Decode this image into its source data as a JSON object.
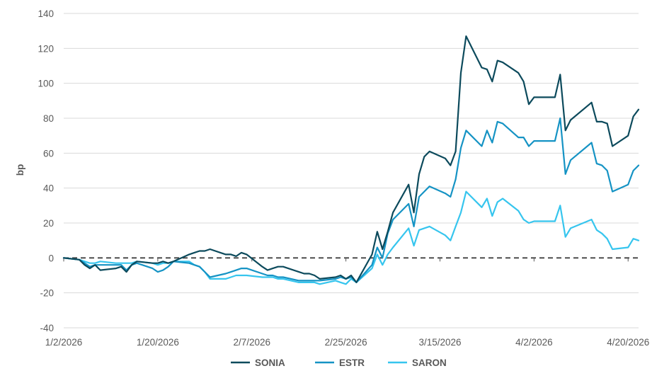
{
  "chart_data": {
    "type": "line",
    "title": "",
    "xlabel": "",
    "ylabel": "bp",
    "ylim": [
      -40,
      140
    ],
    "yticks": [
      -40,
      -20,
      0,
      20,
      40,
      60,
      80,
      100,
      120,
      140
    ],
    "xlim": [
      "2026-01-02",
      "2026-04-22"
    ],
    "xticks": [
      {
        "date": "2026-01-02",
        "label": "1/2/2026"
      },
      {
        "date": "2026-01-20",
        "label": "1/20/2026"
      },
      {
        "date": "2026-02-07",
        "label": "2/7/2026"
      },
      {
        "date": "2026-02-25",
        "label": "2/25/2026"
      },
      {
        "date": "2026-03-15",
        "label": "3/15/2026"
      },
      {
        "date": "2026-04-02",
        "label": "4/2/2026"
      },
      {
        "date": "2026-04-20",
        "label": "4/20/2026"
      }
    ],
    "zero_line": {
      "y": 0,
      "style": "dashed",
      "color": "#404040"
    },
    "grid": {
      "horizontal": true,
      "vertical": false,
      "color": "#d9d9d9"
    },
    "legend": {
      "position": "bottom"
    },
    "series": [
      {
        "name": "SONIA",
        "color": "#0c4a5c",
        "points": [
          [
            "2026-01-02",
            0
          ],
          [
            "2026-01-05",
            -1
          ],
          [
            "2026-01-06",
            -4
          ],
          [
            "2026-01-07",
            -6
          ],
          [
            "2026-01-08",
            -4
          ],
          [
            "2026-01-09",
            -7
          ],
          [
            "2026-01-12",
            -6
          ],
          [
            "2026-01-13",
            -5
          ],
          [
            "2026-01-14",
            -8
          ],
          [
            "2026-01-15",
            -4
          ],
          [
            "2026-01-16",
            -2
          ],
          [
            "2026-01-19",
            -3
          ],
          [
            "2026-01-20",
            -3
          ],
          [
            "2026-01-21",
            -2
          ],
          [
            "2026-01-22",
            -3
          ],
          [
            "2026-01-23",
            -2
          ],
          [
            "2026-01-26",
            2
          ],
          [
            "2026-01-27",
            3
          ],
          [
            "2026-01-28",
            4
          ],
          [
            "2026-01-29",
            4
          ],
          [
            "2026-01-30",
            5
          ],
          [
            "2026-02-02",
            2
          ],
          [
            "2026-02-03",
            2
          ],
          [
            "2026-02-04",
            1
          ],
          [
            "2026-02-05",
            3
          ],
          [
            "2026-02-06",
            2
          ],
          [
            "2026-02-09",
            -5
          ],
          [
            "2026-02-10",
            -7
          ],
          [
            "2026-02-11",
            -6
          ],
          [
            "2026-02-12",
            -5
          ],
          [
            "2026-02-13",
            -5
          ],
          [
            "2026-02-16",
            -8
          ],
          [
            "2026-02-17",
            -9
          ],
          [
            "2026-02-18",
            -9
          ],
          [
            "2026-02-19",
            -10
          ],
          [
            "2026-02-20",
            -12
          ],
          [
            "2026-02-23",
            -11
          ],
          [
            "2026-02-24",
            -10
          ],
          [
            "2026-02-25",
            -12
          ],
          [
            "2026-02-26",
            -10
          ],
          [
            "2026-02-27",
            -14
          ],
          [
            "2026-03-02",
            2
          ],
          [
            "2026-03-03",
            15
          ],
          [
            "2026-03-04",
            5
          ],
          [
            "2026-03-05",
            15
          ],
          [
            "2026-03-06",
            26
          ],
          [
            "2026-03-09",
            42
          ],
          [
            "2026-03-10",
            26
          ],
          [
            "2026-03-11",
            48
          ],
          [
            "2026-03-12",
            58
          ],
          [
            "2026-03-13",
            61
          ],
          [
            "2026-03-16",
            57
          ],
          [
            "2026-03-17",
            53
          ],
          [
            "2026-03-18",
            61
          ],
          [
            "2026-03-19",
            106
          ],
          [
            "2026-03-20",
            127
          ],
          [
            "2026-03-23",
            109
          ],
          [
            "2026-03-24",
            108
          ],
          [
            "2026-03-25",
            101
          ],
          [
            "2026-03-26",
            113
          ],
          [
            "2026-03-27",
            112
          ],
          [
            "2026-03-30",
            106
          ],
          [
            "2026-03-31",
            101
          ],
          [
            "2026-04-01",
            88
          ],
          [
            "2026-04-02",
            92
          ],
          [
            "2026-04-03",
            92
          ],
          [
            "2026-04-06",
            92
          ],
          [
            "2026-04-07",
            105
          ],
          [
            "2026-04-08",
            73
          ],
          [
            "2026-04-09",
            79
          ],
          [
            "2026-04-13",
            89
          ],
          [
            "2026-04-14",
            78
          ],
          [
            "2026-04-15",
            78
          ],
          [
            "2026-04-16",
            77
          ],
          [
            "2026-04-17",
            64
          ],
          [
            "2026-04-20",
            70
          ],
          [
            "2026-04-21",
            81
          ],
          [
            "2026-04-22",
            85
          ]
        ]
      },
      {
        "name": "ESTR",
        "color": "#1593c4",
        "points": [
          [
            "2026-01-02",
            0
          ],
          [
            "2026-01-05",
            -1
          ],
          [
            "2026-01-06",
            -3
          ],
          [
            "2026-01-07",
            -5
          ],
          [
            "2026-01-08",
            -4
          ],
          [
            "2026-01-09",
            -4
          ],
          [
            "2026-01-12",
            -4
          ],
          [
            "2026-01-13",
            -4
          ],
          [
            "2026-01-14",
            -7
          ],
          [
            "2026-01-15",
            -4
          ],
          [
            "2026-01-16",
            -3
          ],
          [
            "2026-01-19",
            -6
          ],
          [
            "2026-01-20",
            -8
          ],
          [
            "2026-01-21",
            -7
          ],
          [
            "2026-01-22",
            -5
          ],
          [
            "2026-01-23",
            -2
          ],
          [
            "2026-01-26",
            -3
          ],
          [
            "2026-01-27",
            -4
          ],
          [
            "2026-01-28",
            -5
          ],
          [
            "2026-01-29",
            -8
          ],
          [
            "2026-01-30",
            -11
          ],
          [
            "2026-02-02",
            -9
          ],
          [
            "2026-02-03",
            -8
          ],
          [
            "2026-02-04",
            -7
          ],
          [
            "2026-02-05",
            -6
          ],
          [
            "2026-02-06",
            -6
          ],
          [
            "2026-02-09",
            -9
          ],
          [
            "2026-02-10",
            -10
          ],
          [
            "2026-02-11",
            -10
          ],
          [
            "2026-02-12",
            -11
          ],
          [
            "2026-02-13",
            -11
          ],
          [
            "2026-02-16",
            -13
          ],
          [
            "2026-02-17",
            -13
          ],
          [
            "2026-02-18",
            -13
          ],
          [
            "2026-02-19",
            -13
          ],
          [
            "2026-02-20",
            -13
          ],
          [
            "2026-02-23",
            -12
          ],
          [
            "2026-02-24",
            -11
          ],
          [
            "2026-02-25",
            -12
          ],
          [
            "2026-02-26",
            -11
          ],
          [
            "2026-02-27",
            -14
          ],
          [
            "2026-03-02",
            -4
          ],
          [
            "2026-03-03",
            6
          ],
          [
            "2026-03-04",
            0
          ],
          [
            "2026-03-05",
            14
          ],
          [
            "2026-03-06",
            22
          ],
          [
            "2026-03-09",
            31
          ],
          [
            "2026-03-10",
            18
          ],
          [
            "2026-03-11",
            35
          ],
          [
            "2026-03-12",
            38
          ],
          [
            "2026-03-13",
            41
          ],
          [
            "2026-03-16",
            37
          ],
          [
            "2026-03-17",
            35
          ],
          [
            "2026-03-18",
            45
          ],
          [
            "2026-03-19",
            63
          ],
          [
            "2026-03-20",
            73
          ],
          [
            "2026-03-23",
            64
          ],
          [
            "2026-03-24",
            73
          ],
          [
            "2026-03-25",
            66
          ],
          [
            "2026-03-26",
            78
          ],
          [
            "2026-03-27",
            77
          ],
          [
            "2026-03-30",
            69
          ],
          [
            "2026-03-31",
            69
          ],
          [
            "2026-04-01",
            64
          ],
          [
            "2026-04-02",
            67
          ],
          [
            "2026-04-03",
            67
          ],
          [
            "2026-04-06",
            67
          ],
          [
            "2026-04-07",
            80
          ],
          [
            "2026-04-08",
            48
          ],
          [
            "2026-04-09",
            56
          ],
          [
            "2026-04-13",
            66
          ],
          [
            "2026-04-14",
            54
          ],
          [
            "2026-04-15",
            53
          ],
          [
            "2026-04-16",
            50
          ],
          [
            "2026-04-17",
            38
          ],
          [
            "2026-04-20",
            42
          ],
          [
            "2026-04-21",
            50
          ],
          [
            "2026-04-22",
            53
          ]
        ]
      },
      {
        "name": "SARON",
        "color": "#36c5ee",
        "points": [
          [
            "2026-01-02",
            0
          ],
          [
            "2026-01-05",
            -1
          ],
          [
            "2026-01-06",
            -2
          ],
          [
            "2026-01-07",
            -3
          ],
          [
            "2026-01-08",
            -3
          ],
          [
            "2026-01-09",
            -2
          ],
          [
            "2026-01-12",
            -3
          ],
          [
            "2026-01-13",
            -3
          ],
          [
            "2026-01-14",
            -3
          ],
          [
            "2026-01-15",
            -3
          ],
          [
            "2026-01-16",
            -2
          ],
          [
            "2026-01-19",
            -3
          ],
          [
            "2026-01-20",
            -4
          ],
          [
            "2026-01-21",
            -3
          ],
          [
            "2026-01-22",
            -3
          ],
          [
            "2026-01-23",
            -2
          ],
          [
            "2026-01-26",
            -2
          ],
          [
            "2026-01-27",
            -4
          ],
          [
            "2026-01-28",
            -5
          ],
          [
            "2026-01-29",
            -8
          ],
          [
            "2026-01-30",
            -12
          ],
          [
            "2026-02-02",
            -12
          ],
          [
            "2026-02-03",
            -11
          ],
          [
            "2026-02-04",
            -10
          ],
          [
            "2026-02-05",
            -10
          ],
          [
            "2026-02-06",
            -10
          ],
          [
            "2026-02-09",
            -11
          ],
          [
            "2026-02-10",
            -11
          ],
          [
            "2026-02-11",
            -11
          ],
          [
            "2026-02-12",
            -12
          ],
          [
            "2026-02-13",
            -12
          ],
          [
            "2026-02-16",
            -14
          ],
          [
            "2026-02-17",
            -14
          ],
          [
            "2026-02-18",
            -14
          ],
          [
            "2026-02-19",
            -14
          ],
          [
            "2026-02-20",
            -15
          ],
          [
            "2026-02-23",
            -13
          ],
          [
            "2026-02-24",
            -14
          ],
          [
            "2026-02-25",
            -15
          ],
          [
            "2026-02-26",
            -12
          ],
          [
            "2026-02-27",
            -14
          ],
          [
            "2026-03-02",
            -6
          ],
          [
            "2026-03-03",
            2
          ],
          [
            "2026-03-04",
            -4
          ],
          [
            "2026-03-05",
            2
          ],
          [
            "2026-03-06",
            6
          ],
          [
            "2026-03-09",
            17
          ],
          [
            "2026-03-10",
            7
          ],
          [
            "2026-03-11",
            16
          ],
          [
            "2026-03-12",
            17
          ],
          [
            "2026-03-13",
            18
          ],
          [
            "2026-03-16",
            13
          ],
          [
            "2026-03-17",
            10
          ],
          [
            "2026-03-18",
            18
          ],
          [
            "2026-03-19",
            26
          ],
          [
            "2026-03-20",
            38
          ],
          [
            "2026-03-23",
            29
          ],
          [
            "2026-03-24",
            34
          ],
          [
            "2026-03-25",
            24
          ],
          [
            "2026-03-26",
            32
          ],
          [
            "2026-03-27",
            34
          ],
          [
            "2026-03-30",
            27
          ],
          [
            "2026-03-31",
            22
          ],
          [
            "2026-04-01",
            20
          ],
          [
            "2026-04-02",
            21
          ],
          [
            "2026-04-03",
            21
          ],
          [
            "2026-04-06",
            21
          ],
          [
            "2026-04-07",
            30
          ],
          [
            "2026-04-08",
            12
          ],
          [
            "2026-04-09",
            17
          ],
          [
            "2026-04-13",
            22
          ],
          [
            "2026-04-14",
            16
          ],
          [
            "2026-04-15",
            14
          ],
          [
            "2026-04-16",
            11
          ],
          [
            "2026-04-17",
            5
          ],
          [
            "2026-04-20",
            6
          ],
          [
            "2026-04-21",
            11
          ],
          [
            "2026-04-22",
            10
          ]
        ]
      }
    ]
  }
}
